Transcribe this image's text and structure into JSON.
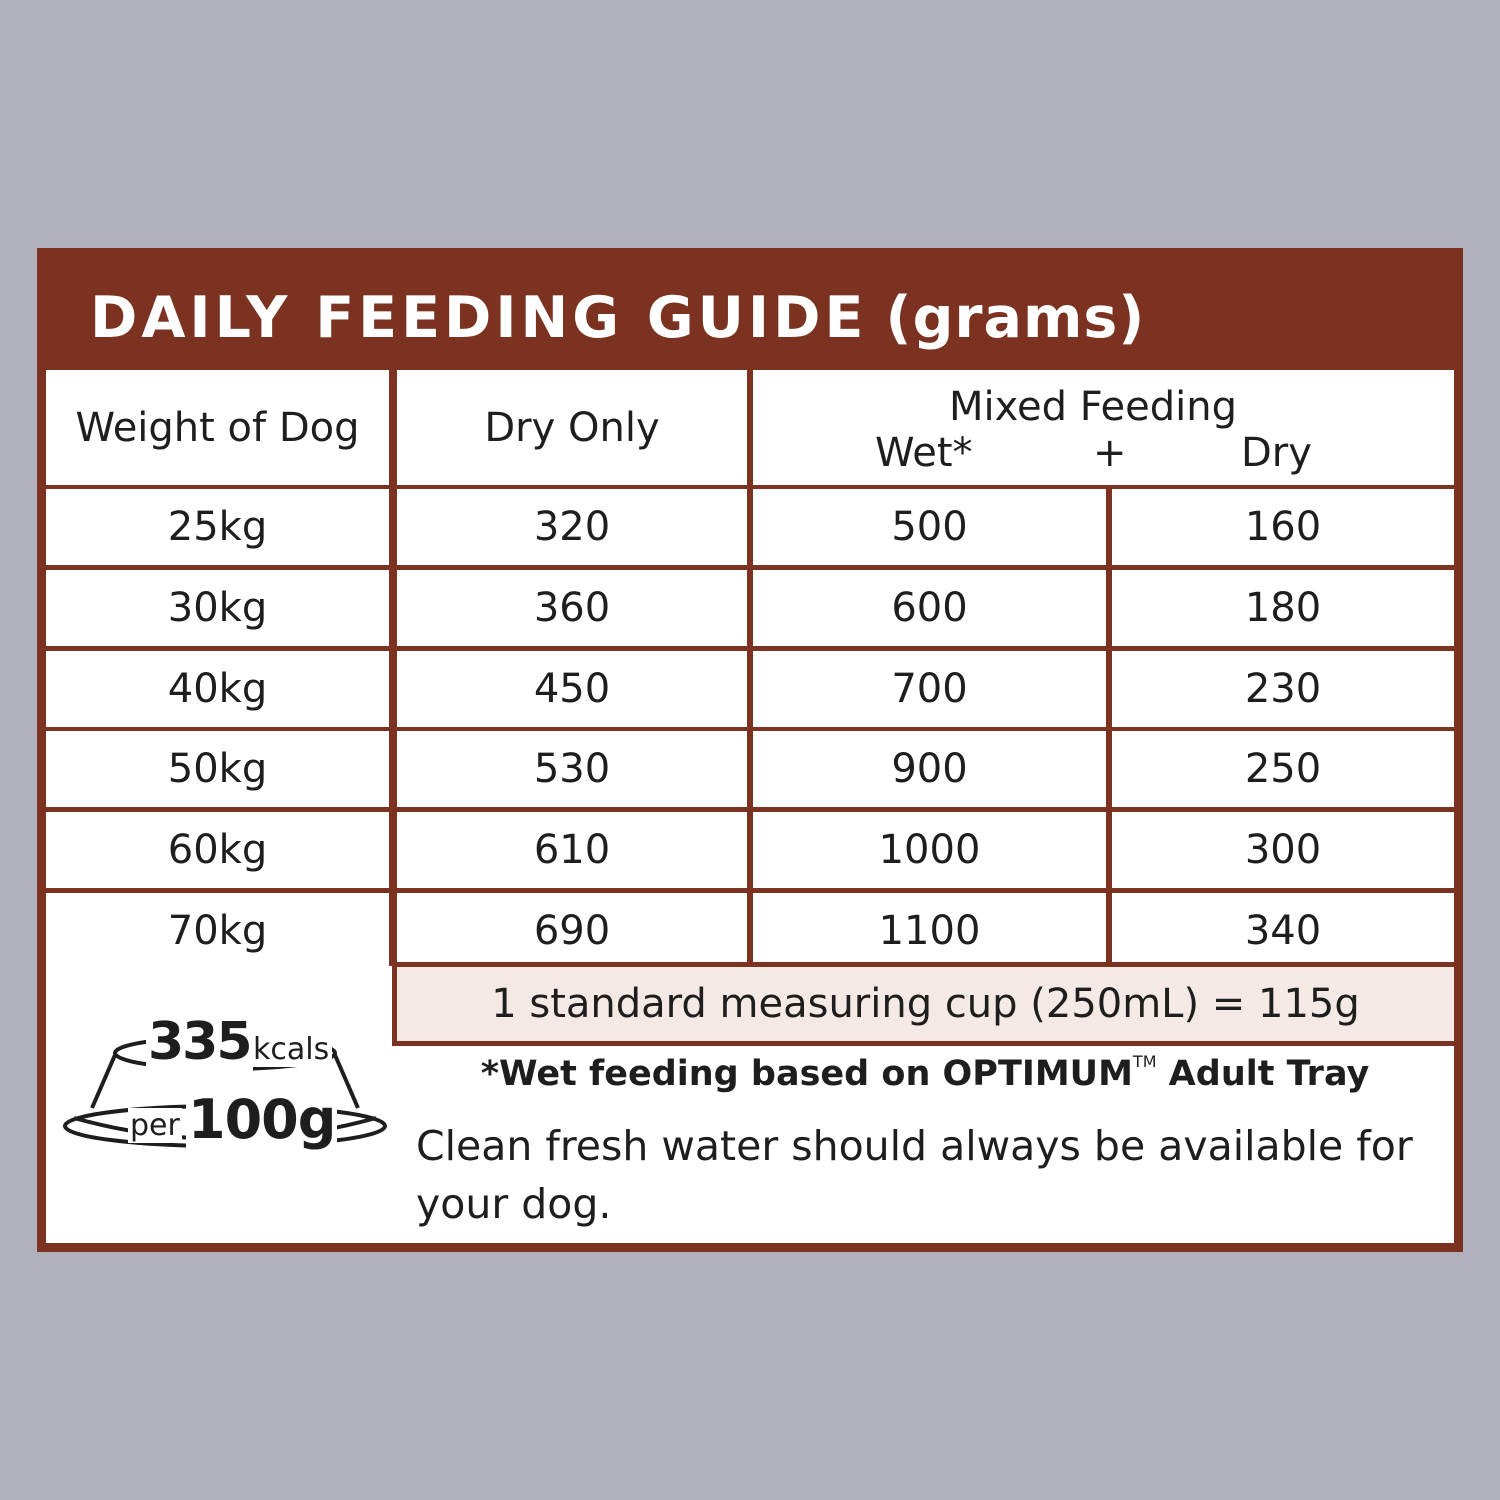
{
  "title": {
    "main": "DAILY FEEDING GUIDE",
    "unit": "(grams)"
  },
  "headers": {
    "weight": "Weight of Dog",
    "dry_only": "Dry Only",
    "mixed": "Mixed Feeding",
    "wet": "Wet*",
    "plus": "+",
    "dry": "Dry"
  },
  "rows": [
    {
      "weight": "25kg",
      "dry_only": "320",
      "wet": "500",
      "dry": "160"
    },
    {
      "weight": "30kg",
      "dry_only": "360",
      "wet": "600",
      "dry": "180"
    },
    {
      "weight": "40kg",
      "dry_only": "450",
      "wet": "700",
      "dry": "230"
    },
    {
      "weight": "50kg",
      "dry_only": "530",
      "wet": "900",
      "dry": "250"
    },
    {
      "weight": "60kg",
      "dry_only": "610",
      "wet": "1000",
      "dry": "300"
    },
    {
      "weight": "70kg",
      "dry_only": "690",
      "wet": "1100",
      "dry": "340"
    }
  ],
  "cup_note": "1 standard measuring cup (250mL) = 115g",
  "wet_note": {
    "prefix": "*Wet feeding based on OPTIMUM",
    "tm": "TM",
    "suffix": " Adult Tray"
  },
  "water_note": "Clean fresh water should always be available for your dog.",
  "badge": {
    "kcals_value": "335",
    "kcals_unit": "kcals",
    "per": "per",
    "amount": "100g",
    "icon": "food-bowl-icon"
  },
  "colors": {
    "brand": "#7b3221",
    "background": "#b1b1bb",
    "cup_fill": "#f5e9e5",
    "text": "#1e1e1e"
  }
}
